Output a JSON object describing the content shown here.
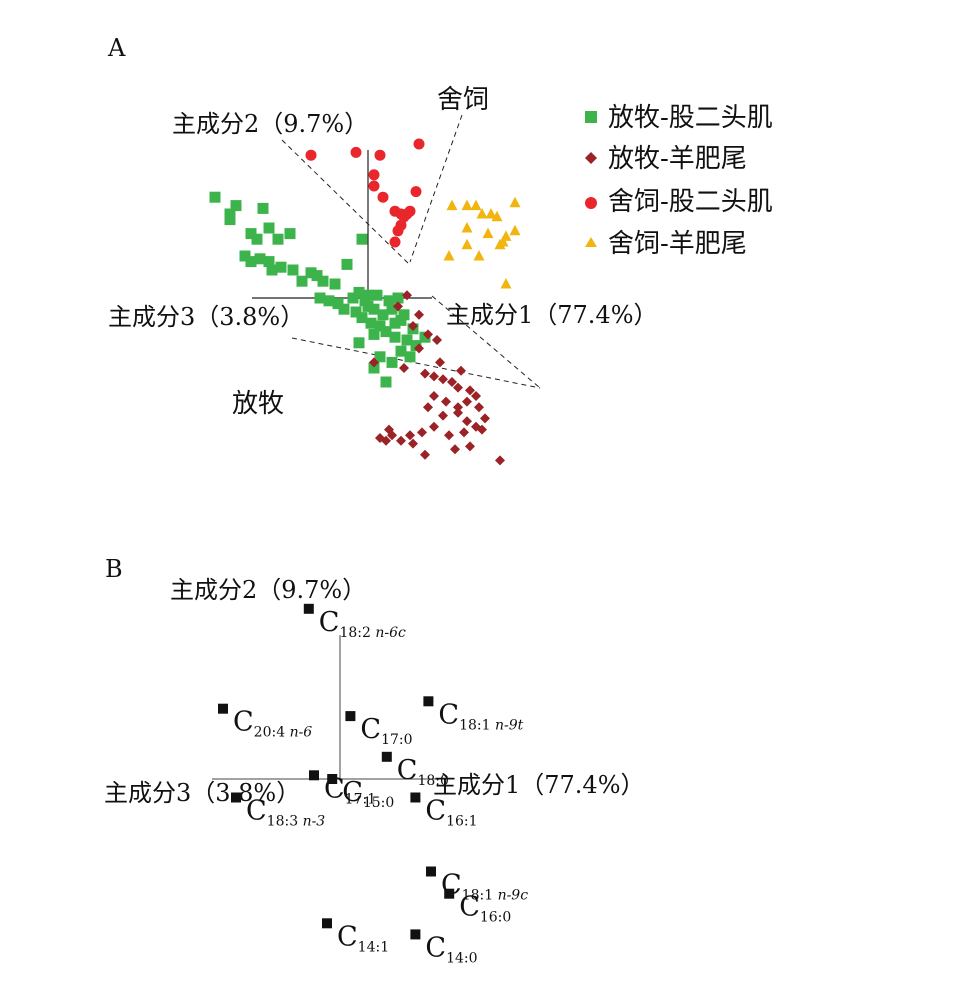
{
  "chart_data": [
    {
      "panel": "A",
      "type": "scatter",
      "axes": {
        "pc1": "主成分1（77.4%）",
        "pc2": "主成分2（9.7%）",
        "pc3": "主成分3（3.8%）"
      },
      "region_labels": {
        "top": "舍饲",
        "bottom": "放牧"
      },
      "series": [
        {
          "name": "放牧-股二头肌",
          "color": "#3cb44b",
          "marker": "square",
          "points": [
            [
              -5.1,
              3.6
            ],
            [
              -4.4,
              3.3
            ],
            [
              -4.6,
              3.0
            ],
            [
              -4.6,
              2.8
            ],
            [
              -3.5,
              3.2
            ],
            [
              -3.3,
              2.5
            ],
            [
              -2.6,
              2.3
            ],
            [
              -3.0,
              2.1
            ],
            [
              -3.9,
              2.3
            ],
            [
              -3.7,
              2.1
            ],
            [
              -4.1,
              1.5
            ],
            [
              -3.6,
              1.4
            ],
            [
              -3.9,
              1.3
            ],
            [
              -3.3,
              1.3
            ],
            [
              -3.2,
              1.0
            ],
            [
              -2.9,
              1.1
            ],
            [
              -2.5,
              1.0
            ],
            [
              -1.7,
              0.8
            ],
            [
              -1.5,
              0.6
            ],
            [
              -1.9,
              0.9
            ],
            [
              -1.1,
              0.5
            ],
            [
              -2.2,
              0.6
            ],
            [
              -0.7,
              1.2
            ],
            [
              -0.3,
              0.2
            ],
            [
              0.0,
              0.1
            ],
            [
              -0.2,
              2.1
            ],
            [
              -0.5,
              0.0
            ],
            [
              -1.6,
              0.0
            ],
            [
              -1.3,
              -0.1
            ],
            [
              -1.0,
              -0.2
            ],
            [
              -0.8,
              -0.4
            ],
            [
              -0.4,
              -0.5
            ],
            [
              -0.2,
              -0.7
            ],
            [
              0.2,
              -0.4
            ],
            [
              0.5,
              -0.6
            ],
            [
              0.8,
              -0.4
            ],
            [
              1.2,
              -0.6
            ],
            [
              0.4,
              -1.0
            ],
            [
              0.1,
              -0.9
            ],
            [
              0.6,
              -1.2
            ],
            [
              0.9,
              -1.4
            ],
            [
              1.3,
              -1.5
            ],
            [
              1.6,
              -1.7
            ],
            [
              1.1,
              -1.9
            ],
            [
              0.4,
              -2.1
            ],
            [
              0.2,
              -2.5
            ],
            [
              0.8,
              -2.3
            ],
            [
              1.4,
              -2.1
            ],
            [
              1.9,
              -1.4
            ],
            [
              0.6,
              -3.0
            ],
            [
              0.9,
              -0.9
            ],
            [
              0.0,
              -0.3
            ],
            [
              -0.1,
              -0.1
            ],
            [
              0.3,
              0.1
            ],
            [
              0.7,
              -0.1
            ],
            [
              1.0,
              0.0
            ],
            [
              1.1,
              -0.8
            ],
            [
              0.2,
              -1.3
            ],
            [
              -0.3,
              -1.6
            ],
            [
              1.5,
              -1.1
            ]
          ]
        },
        {
          "name": "放牧-羊肥尾",
          "color": "#9b2226",
          "marker": "diamond",
          "points": [
            [
              1.3,
              0.1
            ],
            [
              1.0,
              -0.3
            ],
            [
              1.7,
              -0.6
            ],
            [
              1.5,
              -1.0
            ],
            [
              2.0,
              -1.3
            ],
            [
              2.3,
              -1.5
            ],
            [
              1.7,
              -1.8
            ],
            [
              0.2,
              -2.3
            ],
            [
              1.9,
              -2.7
            ],
            [
              2.2,
              -2.8
            ],
            [
              2.5,
              -2.9
            ],
            [
              2.8,
              -3.0
            ],
            [
              3.0,
              -3.2
            ],
            [
              3.4,
              -3.3
            ],
            [
              3.6,
              -3.5
            ],
            [
              3.3,
              -3.7
            ],
            [
              3.7,
              -3.9
            ],
            [
              3.0,
              -3.9
            ],
            [
              2.6,
              -3.7
            ],
            [
              2.2,
              -3.5
            ],
            [
              2.0,
              -3.9
            ],
            [
              2.5,
              -4.2
            ],
            [
              3.0,
              -4.1
            ],
            [
              3.3,
              -4.4
            ],
            [
              3.6,
              -4.6
            ],
            [
              3.8,
              -4.7
            ],
            [
              3.9,
              -4.3
            ],
            [
              3.2,
              -4.8
            ],
            [
              2.7,
              -4.9
            ],
            [
              2.2,
              -4.6
            ],
            [
              1.8,
              -4.8
            ],
            [
              1.4,
              -4.9
            ],
            [
              1.1,
              -5.1
            ],
            [
              0.8,
              -4.9
            ],
            [
              0.6,
              -5.1
            ],
            [
              0.4,
              -5.0
            ],
            [
              0.7,
              -4.7
            ],
            [
              1.5,
              -5.2
            ],
            [
              2.9,
              -5.4
            ],
            [
              3.4,
              -5.3
            ],
            [
              4.4,
              -5.8
            ],
            [
              1.9,
              -5.6
            ],
            [
              3.1,
              -2.6
            ],
            [
              2.4,
              -2.3
            ],
            [
              1.2,
              -2.5
            ]
          ]
        },
        {
          "name": "舍饲-股二头肌",
          "color": "#e8262b",
          "marker": "circle",
          "points": [
            [
              -1.9,
              5.1
            ],
            [
              -0.4,
              5.2
            ],
            [
              0.4,
              5.1
            ],
            [
              1.7,
              5.5
            ],
            [
              0.2,
              4.4
            ],
            [
              0.2,
              4.0
            ],
            [
              0.5,
              3.6
            ],
            [
              1.6,
              3.8
            ],
            [
              0.9,
              3.1
            ],
            [
              1.1,
              3.0
            ],
            [
              1.3,
              3.0
            ],
            [
              1.4,
              3.1
            ],
            [
              1.2,
              2.9
            ],
            [
              1.1,
              2.6
            ],
            [
              1.0,
              2.4
            ],
            [
              0.9,
              2.0
            ]
          ]
        },
        {
          "name": "舍饲-羊肥尾",
          "color": "#f2b50f",
          "marker": "triangle",
          "points": [
            [
              2.8,
              3.3
            ],
            [
              3.3,
              3.3
            ],
            [
              3.6,
              3.3
            ],
            [
              4.9,
              3.4
            ],
            [
              3.8,
              3.0
            ],
            [
              4.1,
              3.0
            ],
            [
              4.3,
              2.9
            ],
            [
              3.3,
              2.5
            ],
            [
              4.0,
              2.3
            ],
            [
              4.9,
              2.4
            ],
            [
              4.6,
              2.2
            ],
            [
              3.3,
              1.9
            ],
            [
              3.7,
              1.5
            ],
            [
              2.7,
              1.5
            ],
            [
              4.4,
              1.9
            ],
            [
              4.5,
              2.0
            ],
            [
              4.6,
              0.5
            ]
          ]
        }
      ]
    },
    {
      "panel": "B",
      "type": "scatter",
      "axes": {
        "pc1": "主成分1（77.4%）",
        "pc2": "主成分2（9.7%）",
        "pc3": "主成分3（3.8%）"
      },
      "color": "#111111",
      "marker": "square",
      "variables": [
        {
          "base": "C",
          "sub": "18:2 ",
          "ital": "n-6c",
          "x": -1.2,
          "y": 4.6
        },
        {
          "base": "C",
          "sub": "20:4 ",
          "ital": "n-6",
          "x": -4.5,
          "y": 1.9
        },
        {
          "base": "C",
          "sub": "17:0",
          "ital": "",
          "x": 0.4,
          "y": 1.7
        },
        {
          "base": "C",
          "sub": "18:1 ",
          "ital": "n-9t",
          "x": 3.4,
          "y": 2.1
        },
        {
          "base": "C",
          "sub": "18:0",
          "ital": "",
          "x": 1.8,
          "y": 0.6
        },
        {
          "base": "C",
          "sub": "15:0",
          "ital": "",
          "x": -0.3,
          "y": 0.0
        },
        {
          "base": "C",
          "sub": "17:1",
          "ital": "",
          "x": -1.0,
          "y": 0.1
        },
        {
          "base": "C",
          "sub": "18:3 ",
          "ital": "n-3",
          "x": -4.0,
          "y": -0.5
        },
        {
          "base": "C",
          "sub": "16:1",
          "ital": "",
          "x": 2.9,
          "y": -0.5
        },
        {
          "base": "C",
          "sub": "18:1 ",
          "ital": "n-9c",
          "x": 3.5,
          "y": -2.5
        },
        {
          "base": "C",
          "sub": "16:0",
          "ital": "",
          "x": 4.2,
          "y": -3.1
        },
        {
          "base": "C",
          "sub": "14:1",
          "ital": "",
          "x": -0.5,
          "y": -3.9
        },
        {
          "base": "C",
          "sub": "14:0",
          "ital": "",
          "x": 2.9,
          "y": -4.2
        }
      ]
    }
  ]
}
